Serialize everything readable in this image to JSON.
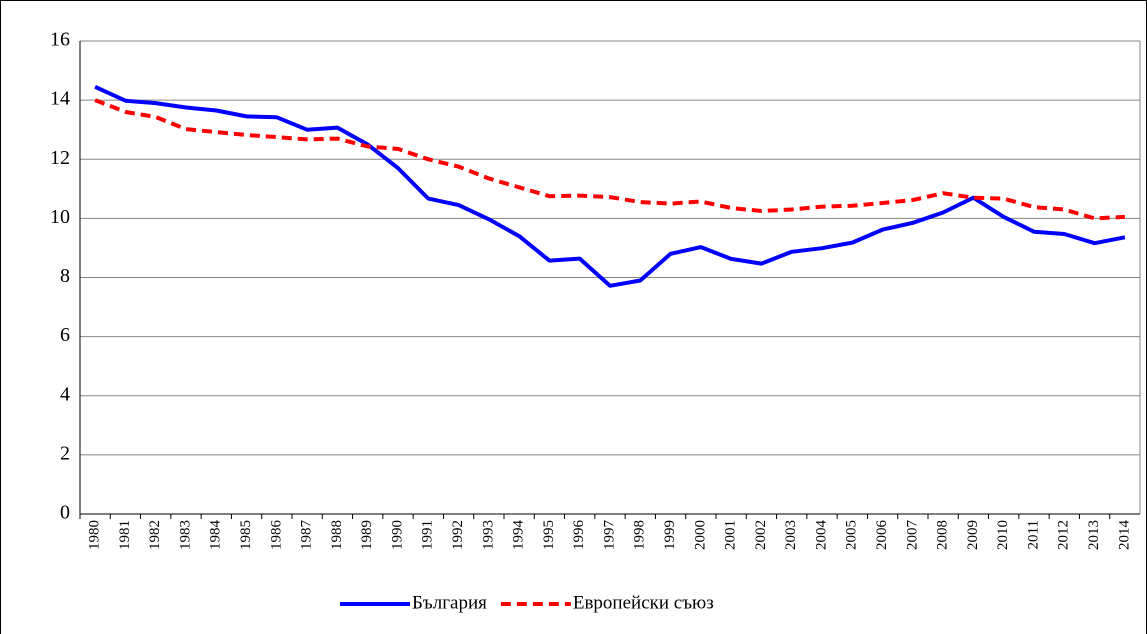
{
  "chart_data": {
    "type": "line",
    "categories": [
      "1980",
      "1981",
      "1982",
      "1983",
      "1984",
      "1985",
      "1986",
      "1987",
      "1988",
      "1989",
      "1990",
      "1991",
      "1992",
      "1993",
      "1994",
      "1995",
      "1996",
      "1997",
      "1998",
      "1999",
      "2000",
      "2001",
      "2002",
      "2003",
      "2004",
      "2005",
      "2006",
      "2007",
      "2008",
      "2009",
      "2010",
      "2011",
      "2012",
      "2013",
      "2014"
    ],
    "series": [
      {
        "name": "България",
        "color": "#0000ff",
        "dashed": false,
        "values": [
          14.45,
          13.98,
          13.9,
          13.75,
          13.65,
          13.45,
          13.42,
          13.0,
          13.07,
          12.5,
          11.7,
          10.67,
          10.45,
          9.97,
          9.4,
          8.57,
          8.64,
          7.72,
          7.9,
          8.8,
          9.03,
          8.63,
          8.47,
          8.87,
          8.99,
          9.18,
          9.62,
          9.85,
          10.2,
          10.7,
          10.05,
          9.55,
          9.47,
          9.16,
          9.36
        ]
      },
      {
        "name": "Европейски съюз",
        "color": "#ff0000",
        "dashed": true,
        "values": [
          14.0,
          13.6,
          13.43,
          13.02,
          12.92,
          12.82,
          12.75,
          12.67,
          12.7,
          12.43,
          12.35,
          12.0,
          11.75,
          11.35,
          11.05,
          10.75,
          10.77,
          10.72,
          10.55,
          10.5,
          10.57,
          10.35,
          10.25,
          10.3,
          10.4,
          10.43,
          10.52,
          10.62,
          10.85,
          10.7,
          10.67,
          10.38,
          10.3,
          10.0,
          10.05
        ]
      }
    ],
    "ylim": [
      0,
      16
    ],
    "yticks": [
      0,
      2,
      4,
      6,
      8,
      10,
      12,
      14,
      16
    ],
    "grid": true,
    "legend": "bottom"
  }
}
